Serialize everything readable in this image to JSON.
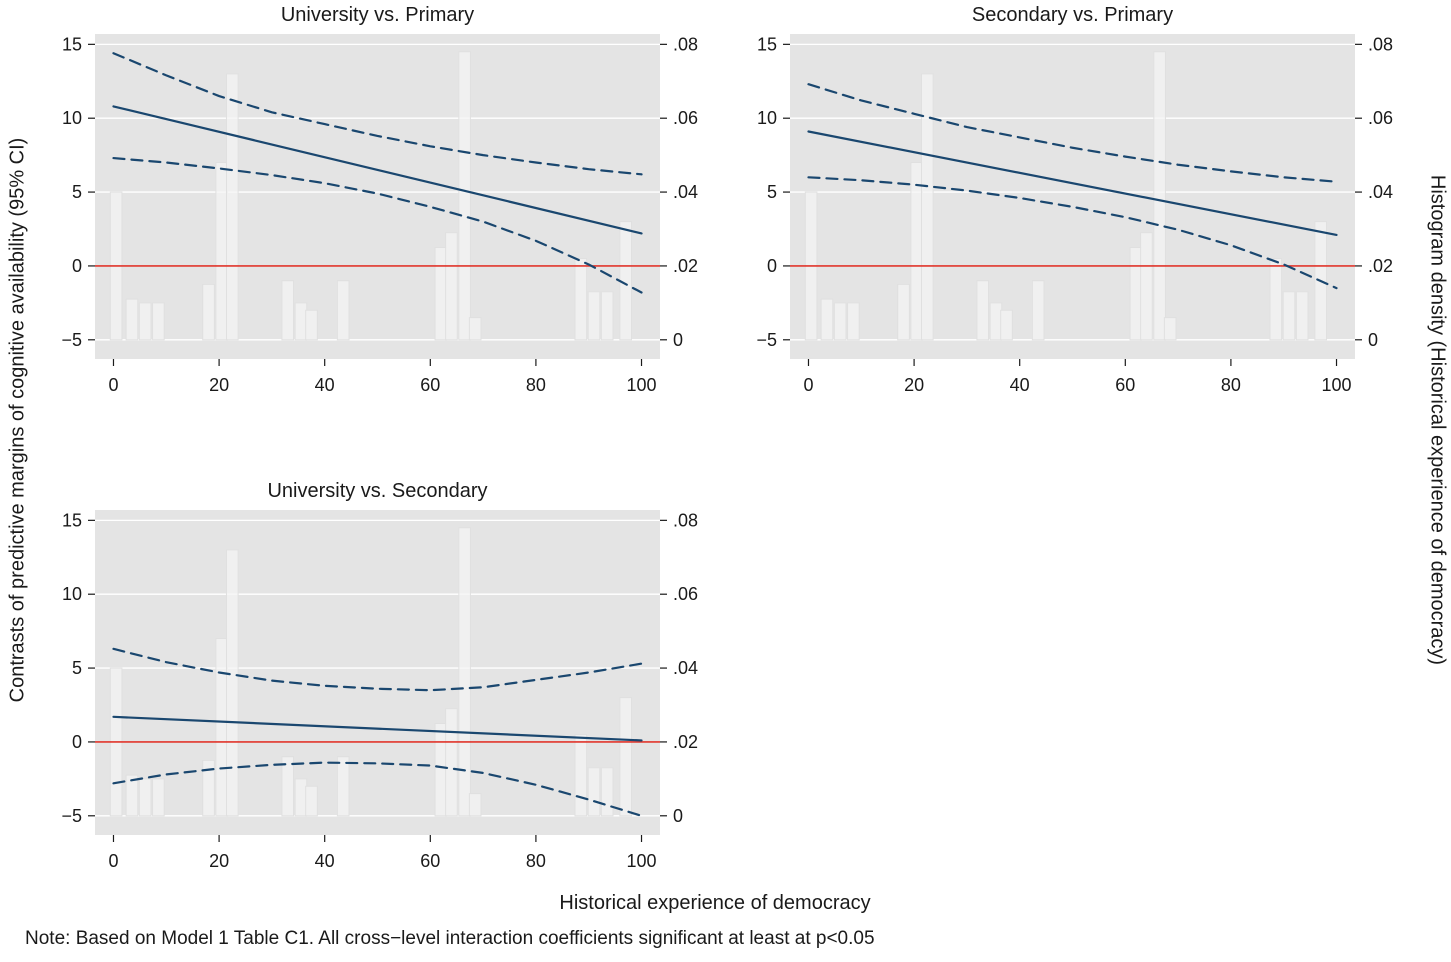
{
  "figure": {
    "ylabel_left": "Contrasts of predictive margins of cognitive availability (95% CI)",
    "ylabel_right": "Histogram density (Historical experience of democracy)",
    "xlabel": "Historical experience of democracy",
    "note": "Note: Based on Model 1 Table C1. All cross−level interaction coefficients significant at least at p<0.05"
  },
  "colors": {
    "plot_bg": "#e4e4e4",
    "grid": "#ffffff",
    "line_navy": "#1a476f",
    "zero_red": "#e0342b",
    "bar_fill": "#f4f4f4",
    "bar_stroke": "#e0e0e0",
    "text": "#1a1a1a"
  },
  "axes": {
    "x_range": [
      0,
      100
    ],
    "y_left_range": [
      -5,
      15
    ],
    "y_right_range": [
      0,
      0.08
    ],
    "zero_line_y": 0,
    "x_ticks": {
      "values": [
        0,
        20,
        40,
        60,
        80,
        100
      ],
      "labels": [
        "0",
        "20",
        "40",
        "60",
        "80",
        "100"
      ]
    },
    "y_left_ticks": {
      "values": [
        15,
        10,
        5,
        0,
        -5
      ],
      "labels": [
        "15",
        "10",
        "5",
        "0",
        "−5"
      ]
    },
    "y_right_ticks": {
      "values": [
        0.08,
        0.06,
        0.04,
        0.02,
        0
      ],
      "labels": [
        ".08",
        ".06",
        ".04",
        ".02",
        "0"
      ]
    }
  },
  "histogram": {
    "note": "Histogram of Historical experience of democracy, identical overlay in each panel, density on right axis",
    "bar_width": 2.2,
    "bars": [
      {
        "x": 0.5,
        "d": 0.04
      },
      {
        "x": 3.5,
        "d": 0.011
      },
      {
        "x": 6.0,
        "d": 0.01
      },
      {
        "x": 8.5,
        "d": 0.01
      },
      {
        "x": 18.0,
        "d": 0.015
      },
      {
        "x": 20.5,
        "d": 0.048
      },
      {
        "x": 22.5,
        "d": 0.072
      },
      {
        "x": 33.0,
        "d": 0.016
      },
      {
        "x": 35.5,
        "d": 0.01
      },
      {
        "x": 37.5,
        "d": 0.008
      },
      {
        "x": 43.5,
        "d": 0.016
      },
      {
        "x": 62.0,
        "d": 0.025
      },
      {
        "x": 64.0,
        "d": 0.029
      },
      {
        "x": 66.5,
        "d": 0.078
      },
      {
        "x": 68.5,
        "d": 0.006
      },
      {
        "x": 88.5,
        "d": 0.022
      },
      {
        "x": 91.0,
        "d": 0.013
      },
      {
        "x": 93.5,
        "d": 0.013
      },
      {
        "x": 97.0,
        "d": 0.032
      }
    ]
  },
  "chart_data": [
    {
      "type": "line",
      "title": "University vs. Primary",
      "xlabel": "Historical experience of democracy",
      "ylabel": "Contrasts of predictive margins of cognitive availability (95% CI)",
      "series": [
        {
          "name": "ci_upper",
          "style": "dashed",
          "x": [
            0,
            10,
            20,
            30,
            40,
            50,
            60,
            70,
            80,
            90,
            100
          ],
          "y": [
            14.4,
            12.9,
            11.5,
            10.4,
            9.6,
            8.8,
            8.1,
            7.5,
            7.0,
            6.55,
            6.2
          ]
        },
        {
          "name": "ci_lower",
          "style": "dashed",
          "x": [
            0,
            10,
            20,
            30,
            40,
            50,
            60,
            70,
            80,
            90,
            100
          ],
          "y": [
            7.3,
            7.0,
            6.6,
            6.15,
            5.6,
            4.9,
            4.0,
            3.0,
            1.7,
            0.1,
            -1.8
          ]
        },
        {
          "name": "estimate",
          "style": "solid",
          "x": [
            0,
            100
          ],
          "y": [
            10.8,
            2.2
          ]
        }
      ]
    },
    {
      "type": "line",
      "title": "Secondary vs. Primary",
      "xlabel": "Historical experience of democracy",
      "ylabel": "Contrasts of predictive margins of cognitive availability (95% CI)",
      "series": [
        {
          "name": "ci_upper",
          "style": "dashed",
          "x": [
            0,
            10,
            20,
            30,
            40,
            50,
            60,
            70,
            80,
            90,
            100
          ],
          "y": [
            12.3,
            11.2,
            10.3,
            9.4,
            8.7,
            8.0,
            7.4,
            6.85,
            6.4,
            6.0,
            5.7
          ]
        },
        {
          "name": "ci_lower",
          "style": "dashed",
          "x": [
            0,
            10,
            20,
            30,
            40,
            50,
            60,
            70,
            80,
            90,
            100
          ],
          "y": [
            6.0,
            5.8,
            5.5,
            5.1,
            4.6,
            4.0,
            3.3,
            2.45,
            1.4,
            0.1,
            -1.5
          ]
        },
        {
          "name": "estimate",
          "style": "solid",
          "x": [
            0,
            100
          ],
          "y": [
            9.1,
            2.1
          ]
        }
      ]
    },
    {
      "type": "line",
      "title": "University vs. Secondary",
      "xlabel": "Historical experience of democracy",
      "ylabel": "Contrasts of predictive margins of cognitive availability (95% CI)",
      "series": [
        {
          "name": "ci_upper",
          "style": "dashed",
          "x": [
            0,
            10,
            20,
            30,
            40,
            50,
            60,
            70,
            80,
            90,
            100
          ],
          "y": [
            6.3,
            5.4,
            4.7,
            4.15,
            3.8,
            3.6,
            3.5,
            3.7,
            4.2,
            4.7,
            5.3
          ]
        },
        {
          "name": "ci_lower",
          "style": "dashed",
          "x": [
            0,
            10,
            20,
            30,
            40,
            50,
            60,
            70,
            80,
            90,
            100
          ],
          "y": [
            -2.8,
            -2.2,
            -1.8,
            -1.55,
            -1.4,
            -1.45,
            -1.6,
            -2.1,
            -2.9,
            -3.9,
            -5.0
          ]
        },
        {
          "name": "estimate",
          "style": "solid",
          "x": [
            0,
            100
          ],
          "y": [
            1.7,
            0.1
          ]
        }
      ]
    }
  ]
}
